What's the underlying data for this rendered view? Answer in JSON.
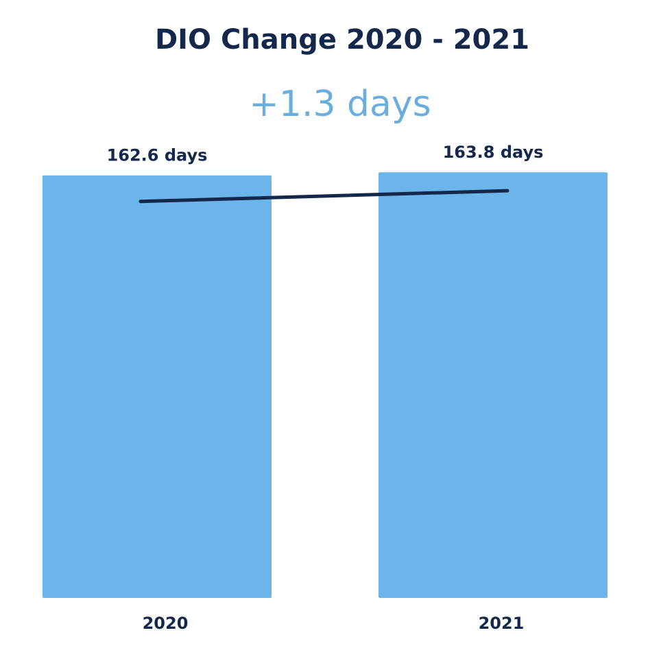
{
  "chart_data": {
    "type": "bar",
    "title": "DIO Change 2020 - 2021",
    "annotation": "+1.3 days",
    "categories": [
      "2020",
      "2021"
    ],
    "values": [
      162.6,
      163.8
    ],
    "value_labels": [
      "162.6 days",
      "163.8 days"
    ],
    "color": "#6bb5ea",
    "line_color": "#14284b"
  }
}
